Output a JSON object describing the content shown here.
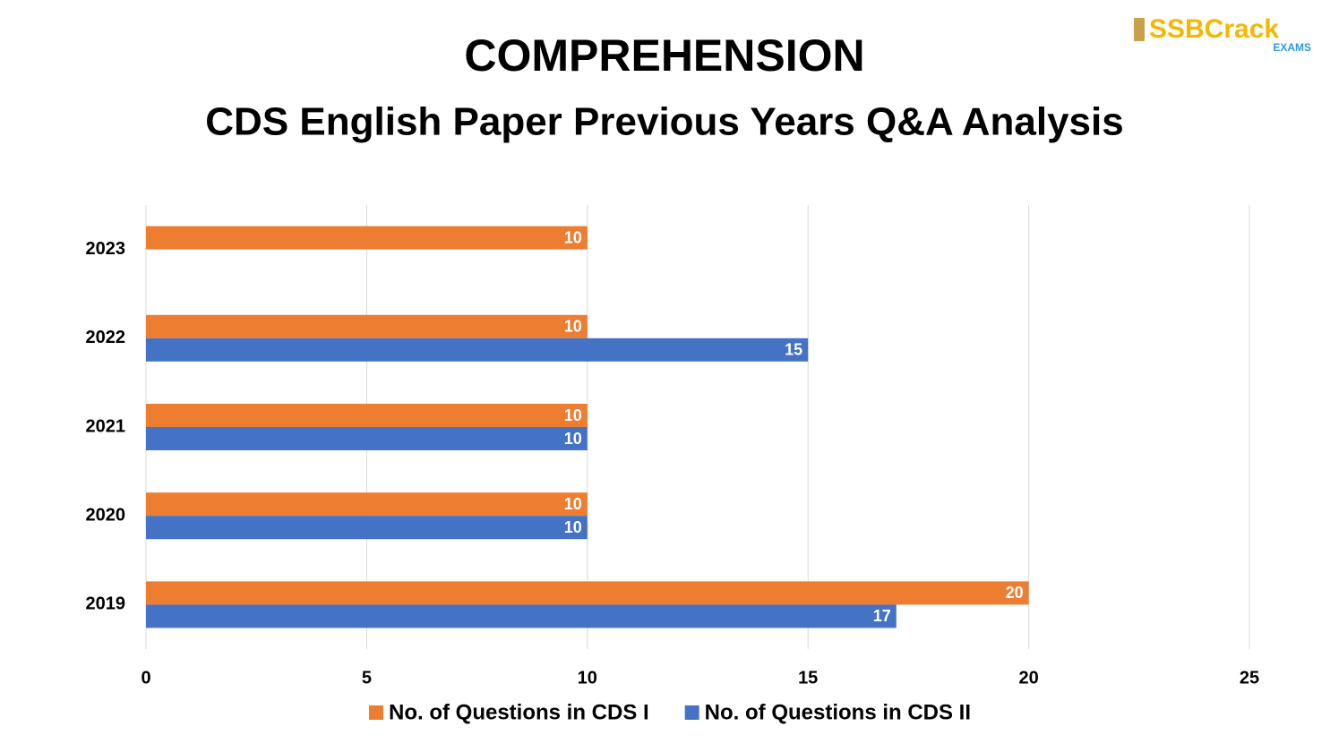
{
  "logo": {
    "name": "SSBCrack",
    "tag": "EXAMS"
  },
  "chart_data": {
    "type": "bar",
    "orientation": "horizontal",
    "title": "COMPREHENSION",
    "subtitle": "CDS English Paper Previous Years Q&A Analysis",
    "categories": [
      "2019",
      "2020",
      "2021",
      "2022",
      "2023"
    ],
    "series": [
      {
        "name": "No. of Questions in CDS I",
        "color": "#ed7d31",
        "values": [
          20,
          10,
          10,
          10,
          10
        ]
      },
      {
        "name": "No. of Questions in CDS II",
        "color": "#4472c4",
        "values": [
          17,
          10,
          10,
          15,
          null
        ]
      }
    ],
    "xlim": [
      0,
      25
    ],
    "xticks": [
      0,
      5,
      10,
      15,
      20,
      25
    ],
    "grid": true,
    "legend": "bottom"
  }
}
